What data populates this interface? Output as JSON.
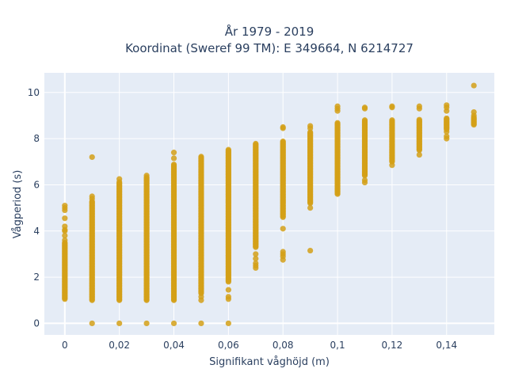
{
  "chart_data": {
    "type": "scatter",
    "title": "År 1979 - 2019",
    "subtitle": "Koordinat (Sweref 99 TM): E 349664, N 6214727",
    "xlabel": "Signifikant våghöjd (m)",
    "ylabel": "Vågperiod (s)",
    "xlim": [
      -0.0075,
      0.1575
    ],
    "ylim": [
      -0.5,
      10.85
    ],
    "x_ticks": [
      0,
      0.02,
      0.04,
      0.06,
      0.08,
      0.1,
      0.12,
      0.14
    ],
    "x_tick_labels": [
      "0",
      "0,02",
      "0,04",
      "0,06",
      "0,08",
      "0,1",
      "0,12",
      "0,14"
    ],
    "y_ticks": [
      0,
      2,
      4,
      6,
      8,
      10
    ],
    "y_tick_labels": [
      "0",
      "2",
      "4",
      "6",
      "8",
      "10"
    ],
    "grid": true,
    "marker_color": "#d4a017",
    "columns": [
      {
        "x": 0.0,
        "points": [
          4.2,
          4.0,
          4.05,
          3.8,
          4.55,
          3.6,
          4.9,
          5.0,
          5.1
        ],
        "ranges": [
          [
            1.05,
            3.5
          ]
        ]
      },
      {
        "x": 0.01,
        "points": [
          0.0,
          7.2,
          5.5,
          5.4
        ],
        "ranges": [
          [
            1.0,
            5.3
          ]
        ]
      },
      {
        "x": 0.02,
        "points": [
          0.0,
          6.25
        ],
        "ranges": [
          [
            1.0,
            6.15
          ]
        ]
      },
      {
        "x": 0.03,
        "points": [
          0.0,
          6.4
        ],
        "ranges": [
          [
            1.0,
            6.35
          ]
        ]
      },
      {
        "x": 0.04,
        "points": [
          0.0,
          7.4,
          7.15
        ],
        "ranges": [
          [
            1.0,
            6.9
          ]
        ]
      },
      {
        "x": 0.05,
        "points": [
          0.0,
          1.15,
          1.0
        ],
        "ranges": [
          [
            1.3,
            7.25
          ]
        ]
      },
      {
        "x": 0.06,
        "points": [
          0.0,
          1.15,
          1.05,
          1.45
        ],
        "ranges": [
          [
            1.8,
            7.55
          ]
        ]
      },
      {
        "x": 0.07,
        "points": [
          3.0,
          2.8,
          2.6,
          2.4,
          2.5
        ],
        "ranges": [
          [
            3.3,
            7.8
          ]
        ]
      },
      {
        "x": 0.08,
        "points": [
          3.1,
          3.0,
          2.9,
          2.75,
          4.1,
          8.45,
          8.5
        ],
        "ranges": [
          [
            4.6,
            7.9
          ]
        ]
      },
      {
        "x": 0.09,
        "points": [
          3.15,
          5.0,
          8.55,
          8.45
        ],
        "ranges": [
          [
            5.2,
            8.3
          ]
        ]
      },
      {
        "x": 0.1,
        "points": [
          9.4,
          9.3,
          9.2
        ],
        "ranges": [
          [
            5.6,
            8.7
          ]
        ]
      },
      {
        "x": 0.11,
        "points": [
          6.1,
          6.2,
          9.35,
          9.3
        ],
        "ranges": [
          [
            6.4,
            8.8
          ]
        ]
      },
      {
        "x": 0.12,
        "points": [
          6.85,
          9.4,
          9.35
        ],
        "ranges": [
          [
            7.0,
            8.8
          ]
        ]
      },
      {
        "x": 0.13,
        "points": [
          7.3,
          9.4,
          9.3
        ],
        "ranges": [
          [
            7.5,
            8.85
          ]
        ]
      },
      {
        "x": 0.14,
        "points": [
          8.0,
          8.1,
          8.3,
          9.45,
          9.35,
          9.2
        ],
        "ranges": [
          [
            8.4,
            8.9
          ]
        ]
      },
      {
        "x": 0.15,
        "points": [
          10.3,
          9.15,
          9.0
        ],
        "ranges": [
          [
            8.6,
            8.95
          ]
        ]
      }
    ]
  }
}
